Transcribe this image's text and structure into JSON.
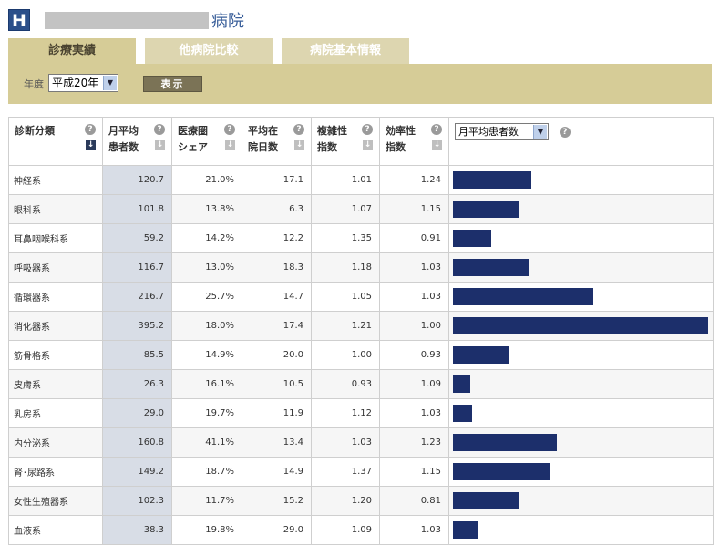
{
  "header": {
    "logo_letter": "H",
    "hospital_suffix": "病院"
  },
  "tabs": [
    {
      "label": "診療実績",
      "active": true
    },
    {
      "label": "他病院比較",
      "active": false
    },
    {
      "label": "病院基本情報",
      "active": false
    }
  ],
  "filter": {
    "year_label": "年度",
    "year_value": "平成20年",
    "show_button": "表示"
  },
  "table": {
    "headers": [
      {
        "line1": "診断分類",
        "line2": ""
      },
      {
        "line1": "月平均",
        "line2": "患者数"
      },
      {
        "line1": "医療圏",
        "line2": "シェア"
      },
      {
        "line1": "平均在",
        "line2": "院日数"
      },
      {
        "line1": "複雑性",
        "line2": "指数"
      },
      {
        "line1": "効率性",
        "line2": "指数"
      }
    ],
    "metric_select": "月平均患者数",
    "help_icon": "?",
    "sort_icon": "↓",
    "rows": [
      {
        "name": "神経系",
        "patients": "120.7",
        "share": "21.0%",
        "days": "17.1",
        "complexity": "1.01",
        "efficiency": "1.24",
        "value": 120.7
      },
      {
        "name": "眼科系",
        "patients": "101.8",
        "share": "13.8%",
        "days": "6.3",
        "complexity": "1.07",
        "efficiency": "1.15",
        "value": 101.8
      },
      {
        "name": "耳鼻咽喉科系",
        "patients": "59.2",
        "share": "14.2%",
        "days": "12.2",
        "complexity": "1.35",
        "efficiency": "0.91",
        "value": 59.2
      },
      {
        "name": "呼吸器系",
        "patients": "116.7",
        "share": "13.0%",
        "days": "18.3",
        "complexity": "1.18",
        "efficiency": "1.03",
        "value": 116.7
      },
      {
        "name": "循環器系",
        "patients": "216.7",
        "share": "25.7%",
        "days": "14.7",
        "complexity": "1.05",
        "efficiency": "1.03",
        "value": 216.7
      },
      {
        "name": "消化器系",
        "patients": "395.2",
        "share": "18.0%",
        "days": "17.4",
        "complexity": "1.21",
        "efficiency": "1.00",
        "value": 395.2
      },
      {
        "name": "筋骨格系",
        "patients": "85.5",
        "share": "14.9%",
        "days": "20.0",
        "complexity": "1.00",
        "efficiency": "0.93",
        "value": 85.5
      },
      {
        "name": "皮膚系",
        "patients": "26.3",
        "share": "16.1%",
        "days": "10.5",
        "complexity": "0.93",
        "efficiency": "1.09",
        "value": 26.3
      },
      {
        "name": "乳房系",
        "patients": "29.0",
        "share": "19.7%",
        "days": "11.9",
        "complexity": "1.12",
        "efficiency": "1.03",
        "value": 29.0
      },
      {
        "name": "内分泌系",
        "patients": "160.8",
        "share": "41.1%",
        "days": "13.4",
        "complexity": "1.03",
        "efficiency": "1.23",
        "value": 160.8
      },
      {
        "name": "腎･尿路系",
        "patients": "149.2",
        "share": "18.7%",
        "days": "14.9",
        "complexity": "1.37",
        "efficiency": "1.15",
        "value": 149.2
      },
      {
        "name": "女性生殖器系",
        "patients": "102.3",
        "share": "11.7%",
        "days": "15.2",
        "complexity": "1.20",
        "efficiency": "0.81",
        "value": 102.3
      },
      {
        "name": "血液系",
        "patients": "38.3",
        "share": "19.8%",
        "days": "29.0",
        "complexity": "1.09",
        "efficiency": "1.03",
        "value": 38.3
      }
    ],
    "bar_max": 395.2,
    "bar_color": "#1c2f6b"
  }
}
